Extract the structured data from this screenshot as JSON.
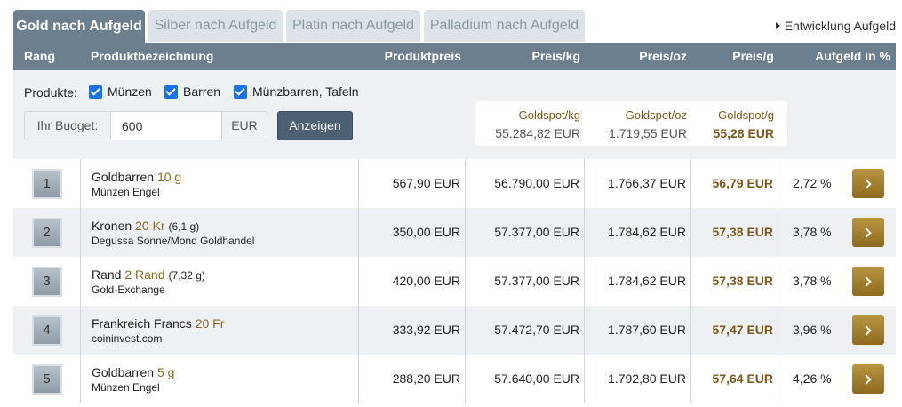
{
  "tabs": [
    {
      "label": "Gold nach Aufgeld",
      "active": true
    },
    {
      "label": "Silber nach Aufgeld",
      "active": false
    },
    {
      "label": "Platin nach Aufgeld",
      "active": false
    },
    {
      "label": "Palladium nach Aufgeld",
      "active": false
    }
  ],
  "dev_link": "Entwicklung Aufgeld",
  "columns": {
    "rank": "Rang",
    "product": "Produktbezeichnung",
    "price": "Produktpreis",
    "per_kg": "Preis/kg",
    "per_oz": "Preis/oz",
    "per_g": "Preis/g",
    "premium": "Aufgeld in %"
  },
  "filter": {
    "products_label": "Produkte:",
    "checkboxes": [
      {
        "label": "Münzen",
        "checked": true
      },
      {
        "label": "Barren",
        "checked": true
      },
      {
        "label": "Münzbarren, Tafeln",
        "checked": true
      }
    ],
    "budget_label": "Ihr Budget:",
    "budget_value": "600",
    "budget_unit": "EUR",
    "show_button": "Anzeigen"
  },
  "spot": {
    "kg_label": "Goldspot/kg",
    "kg_value": "55.284,82 EUR",
    "oz_label": "Goldspot/oz",
    "oz_value": "1.719,55 EUR",
    "g_label": "Goldspot/g",
    "g_value": "55,28 EUR"
  },
  "colors": {
    "header": "#6b7f8e",
    "accent_gold": "#8d6a1f",
    "checkbox": "#1a73e8"
  },
  "rows": [
    {
      "rank": "1",
      "name": "Goldbarren",
      "weight": "10 g",
      "grams": "",
      "dealer": "Münzen Engel",
      "price": "567,90 EUR",
      "per_kg": "56.790,00 EUR",
      "per_oz": "1.766,37 EUR",
      "per_g": "56,79 EUR",
      "premium": "2,72 %"
    },
    {
      "rank": "2",
      "name": "Kronen",
      "weight": "20 Kr",
      "grams": "(6,1 g)",
      "dealer": "Degussa Sonne/Mond Goldhandel",
      "price": "350,00 EUR",
      "per_kg": "57.377,00 EUR",
      "per_oz": "1.784,62 EUR",
      "per_g": "57,38 EUR",
      "premium": "3,78 %"
    },
    {
      "rank": "3",
      "name": "Rand",
      "weight": "2 Rand",
      "grams": "(7,32 g)",
      "dealer": "Gold-Exchange",
      "price": "420,00 EUR",
      "per_kg": "57.377,00 EUR",
      "per_oz": "1.784,62 EUR",
      "per_g": "57,38 EUR",
      "premium": "3,78 %"
    },
    {
      "rank": "4",
      "name": "Frankreich Francs",
      "weight": "20 Fr",
      "grams": "",
      "dealer": "coininvest.com",
      "price": "333,92 EUR",
      "per_kg": "57.472,70 EUR",
      "per_oz": "1.787,60 EUR",
      "per_g": "57,47 EUR",
      "premium": "3,96 %"
    },
    {
      "rank": "5",
      "name": "Goldbarren",
      "weight": "5 g",
      "grams": "",
      "dealer": "Münzen Engel",
      "price": "288,20 EUR",
      "per_kg": "57.640,00 EUR",
      "per_oz": "1.792,80 EUR",
      "per_g": "57,64 EUR",
      "premium": "4,26 %"
    }
  ]
}
